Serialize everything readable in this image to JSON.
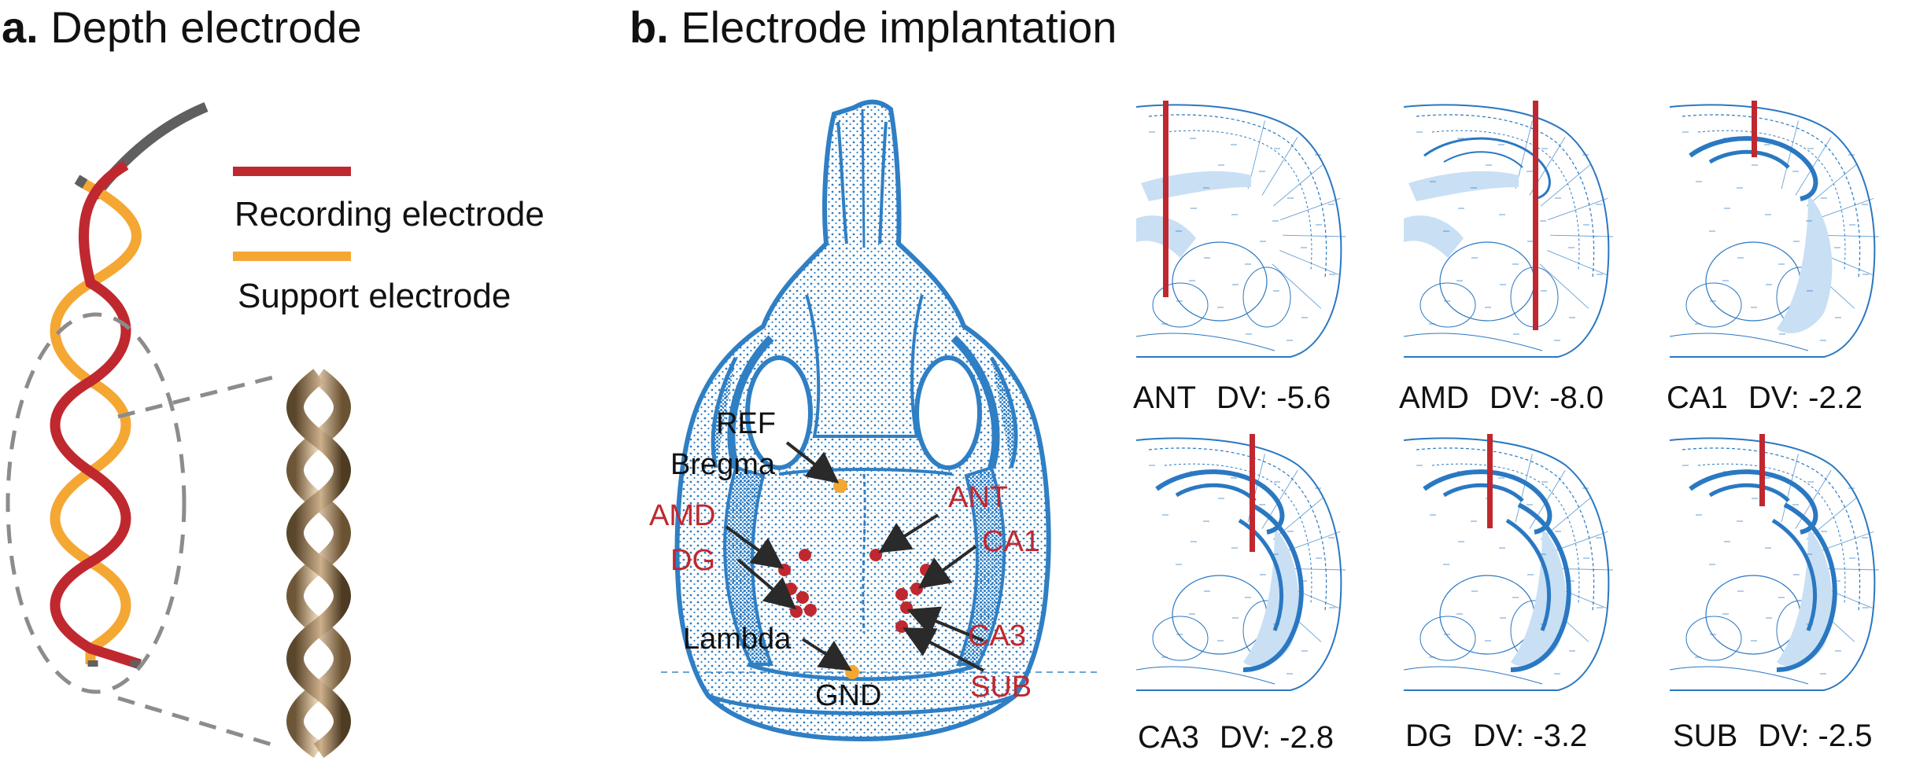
{
  "panel_a": {
    "letter": "a.",
    "title": "Depth electrode",
    "legend": {
      "recording": {
        "label": "Recording electrode",
        "color": "#c0282f"
      },
      "support": {
        "label": "Support electrode",
        "color": "#f5a733"
      }
    }
  },
  "panel_b": {
    "letter": "b.",
    "title": "Electrode implantation",
    "skull_labels": {
      "ref": "REF",
      "bregma": "Bregma",
      "lambda": "Lambda",
      "gnd": "GND",
      "amd": "AMD",
      "dg": "DG",
      "ant": "ANT",
      "ca1": "CA1",
      "ca3": "CA3",
      "sub": "SUB"
    },
    "slices": [
      {
        "region": "ANT",
        "dv": "DV: -5.6"
      },
      {
        "region": "AMD",
        "dv": "DV: -8.0"
      },
      {
        "region": "CA1",
        "dv": "DV: -2.2"
      },
      {
        "region": "CA3",
        "dv": "DV: -2.8"
      },
      {
        "region": "DG",
        "dv": "DV: -3.2"
      },
      {
        "region": "SUB",
        "dv": "DV: -2.5"
      }
    ]
  },
  "colors": {
    "electrode_red": "#c0282f",
    "support_orange": "#f5a733",
    "skull_blue": "#2f7fc4",
    "atlas_blue": "#2a78c2",
    "ventricle_fill": "#c9dff4"
  }
}
